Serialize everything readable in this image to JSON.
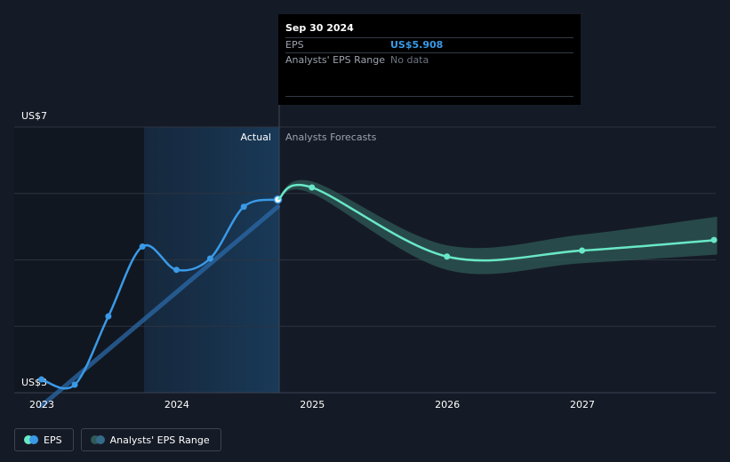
{
  "tooltip": {
    "date": "Sep 30 2024",
    "eps_label": "EPS",
    "eps_value": "US$5.908",
    "range_label": "Analysts' EPS Range",
    "range_value": "No data"
  },
  "labels": {
    "actual": "Actual",
    "forecast": "Analysts Forecasts"
  },
  "legend": {
    "eps": "EPS",
    "range": "Analysts' EPS Range"
  },
  "colors": {
    "background": "#151b26",
    "eps_line": "#3a9ae8",
    "forecast_line": "#69e8c6",
    "range_band": "#2f5a57",
    "grid": "#2c3340",
    "text": "#ffffff",
    "muted": "#9aa3ad"
  },
  "chart_data": {
    "type": "line",
    "x_ticks": [
      "2023",
      "2024",
      "2025",
      "2026",
      "2027"
    ],
    "y_ticks": [
      "US$3",
      "US$7"
    ],
    "ylim": [
      3,
      7
    ],
    "grid": true,
    "legend_position": "bottom-left",
    "series": [
      {
        "name": "EPS",
        "points": [
          {
            "x": "2022-12-31",
            "y": 3.2
          },
          {
            "x": "2023-03-31",
            "y": 3.12
          },
          {
            "x": "2023-06-30",
            "y": 4.15
          },
          {
            "x": "2023-09-30",
            "y": 5.2
          },
          {
            "x": "2023-12-31",
            "y": 4.85
          },
          {
            "x": "2024-03-31",
            "y": 5.02
          },
          {
            "x": "2024-06-30",
            "y": 5.8
          },
          {
            "x": "2024-09-30",
            "y": 5.908
          }
        ]
      },
      {
        "name": "Analysts' EPS Range",
        "points": [
          {
            "x": "2024-12-31",
            "y": 6.09
          },
          {
            "x": "2025-12-31",
            "y": 5.05
          },
          {
            "x": "2026-12-31",
            "y": 5.14
          },
          {
            "x": "2027-12-31",
            "y": 5.3
          }
        ],
        "range": [
          {
            "x": "2024-09-30",
            "low": 5.9,
            "high": 5.9
          },
          {
            "x": "2024-12-31",
            "low": 6.0,
            "high": 6.18
          },
          {
            "x": "2025-12-31",
            "low": 4.85,
            "high": 5.22
          },
          {
            "x": "2026-12-31",
            "low": 4.95,
            "high": 5.38
          },
          {
            "x": "2027-12-31",
            "low": 5.08,
            "high": 5.65
          }
        ]
      }
    ],
    "trend": [
      {
        "x": "2022-12-31",
        "y": 2.8
      },
      {
        "x": "2024-09-30",
        "y": 5.8
      }
    ]
  }
}
